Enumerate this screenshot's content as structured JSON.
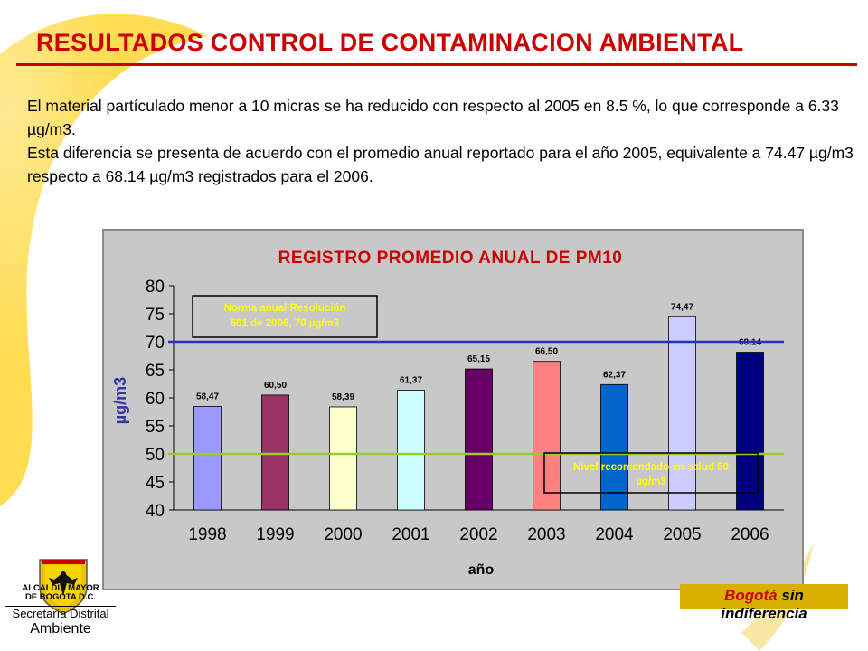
{
  "slide": {
    "title": "RESULTADOS CONTROL DE CONTAMINACION AMBIENTAL",
    "paragraph1": "El material partículado menor a 10 micras se ha reducido con respecto al 2005 en 8.5 %, lo que corresponde a 6.33 µg/m3.",
    "paragraph2": "Esta diferencia se presenta de acuerdo con el promedio anual reportado para el año 2005, equivalente a 74.47 µg/m3 respecto a 68.14  µg/m3  registrados para el 2006."
  },
  "chart_data": {
    "type": "bar",
    "title": "REGISTRO PROMEDIO ANUAL DE PM10",
    "xlabel": "año",
    "ylabel": "µg/m3",
    "ylim": [
      40,
      80
    ],
    "yticks": [
      40,
      45,
      50,
      55,
      60,
      65,
      70,
      75,
      80
    ],
    "categories": [
      "1998",
      "1999",
      "2000",
      "2001",
      "2002",
      "2003",
      "2004",
      "2005",
      "2006"
    ],
    "values": [
      58.47,
      60.5,
      58.39,
      61.37,
      65.15,
      66.5,
      62.37,
      74.47,
      68.14
    ],
    "value_labels": [
      "58,47",
      "60,50",
      "58,39",
      "61,37",
      "65,15",
      "66,50",
      "62,37",
      "74,47",
      "68,14"
    ],
    "bar_colors": [
      "#9999ff",
      "#993366",
      "#ffffcc",
      "#ccffff",
      "#660066",
      "#ff8080",
      "#0066cc",
      "#ccccff",
      "#000080"
    ],
    "reference_lines": [
      {
        "value": 70,
        "color": "#2233bb",
        "label": "Norma anual Resolución 601 de 2006, 70 µg/m3"
      },
      {
        "value": 50,
        "color": "#99cc33",
        "label": "Nivel recomendado en salud 50 µg/m3"
      }
    ],
    "grid": false,
    "legend": "none"
  },
  "footer": {
    "logo_line1": "ALCALDIA MAYOR",
    "logo_line2": "DE BOGOTA D.C.",
    "logo_line3": "Secretaría Distrital",
    "logo_line4": "Ambiente",
    "brand_part1": "Bogotá",
    "brand_part2": "sin indiferencia"
  },
  "colors": {
    "title_red": "#cc0000",
    "swoosh_yellow": "#ffcc00",
    "chart_background": "#c8c8c8",
    "chart_title": "#cc0000",
    "axis_label": "#3333aa",
    "reference_text": "#ffff00"
  }
}
